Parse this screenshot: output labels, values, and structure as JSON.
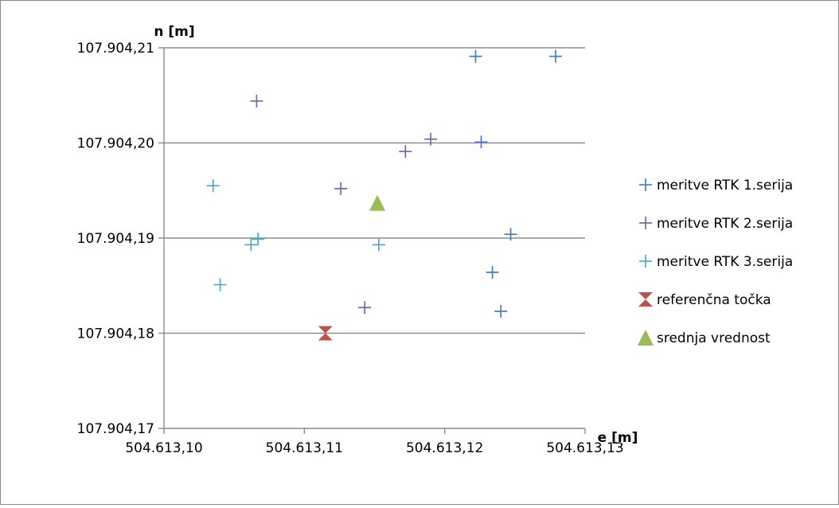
{
  "chart_data": {
    "type": "scatter",
    "title": "",
    "xlabel": "e [m]",
    "ylabel": "n [m]",
    "xlim": [
      504613.1,
      504613.13
    ],
    "ylim": [
      107904.17,
      107904.21
    ],
    "x_ticks": [
      {
        "value": 504613.1,
        "label": "504.613,10"
      },
      {
        "value": 504613.11,
        "label": "504.613,11"
      },
      {
        "value": 504613.12,
        "label": "504.613,12"
      },
      {
        "value": 504613.13,
        "label": "504.613,13"
      }
    ],
    "y_ticks": [
      {
        "value": 107904.17,
        "label": "107.904,17"
      },
      {
        "value": 107904.18,
        "label": "107.904,18"
      },
      {
        "value": 107904.19,
        "label": "107.904,19"
      },
      {
        "value": 107904.2,
        "label": "107.904,20"
      },
      {
        "value": 107904.21,
        "label": "107.904,21"
      }
    ],
    "grid": "horizontal",
    "legend_position": "right",
    "series": [
      {
        "name": "meritve RTK 1.serija",
        "marker": "plus",
        "color": "#4a7ebb",
        "points": [
          [
            504613.1222,
            107904.2091
          ],
          [
            504613.1279,
            107904.2091
          ],
          [
            504613.1226,
            107904.2001
          ],
          [
            504613.1247,
            107904.1904
          ],
          [
            504613.1234,
            107904.1864
          ],
          [
            504613.124,
            107904.1823
          ]
        ]
      },
      {
        "name": "meritve RTK 2.serija",
        "marker": "plus",
        "color": "#8064a2",
        "points": [
          [
            504613.1066,
            107904.2044
          ],
          [
            504613.119,
            107904.2004
          ],
          [
            504613.1172,
            107904.1991
          ],
          [
            504613.1126,
            107904.1952
          ],
          [
            504613.1143,
            107904.1827
          ]
        ]
      },
      {
        "name": "meritve RTK 3.serija",
        "marker": "plus",
        "color": "#4bacc6",
        "points": [
          [
            504613.1035,
            107904.1955
          ],
          [
            504613.1062,
            107904.1893
          ],
          [
            504613.1067,
            107904.1899
          ],
          [
            504613.1153,
            107904.1893
          ],
          [
            504613.104,
            107904.1851
          ]
        ]
      },
      {
        "name": "referenčna točka",
        "marker": "hourglass",
        "color": "#c0504d",
        "points": [
          [
            504613.1115,
            107904.18
          ]
        ]
      },
      {
        "name": "srednja vrednost",
        "marker": "triangle",
        "color": "#9bbb59",
        "points": [
          [
            504613.1152,
            107904.1937
          ]
        ]
      }
    ]
  }
}
